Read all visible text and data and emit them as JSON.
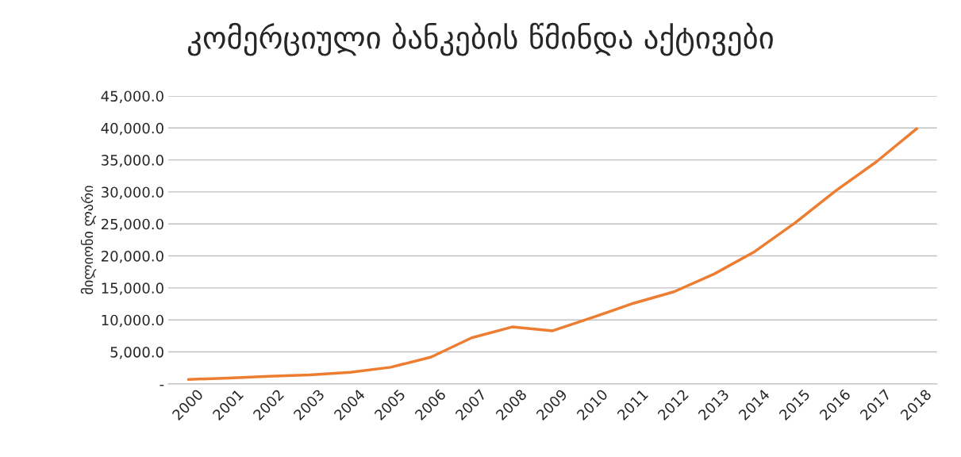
{
  "chart_data": {
    "type": "line",
    "title": "კომერციული ბანკების წმინდა აქტივები",
    "ylabel": "მილიონი ლარი",
    "categories": [
      "2000",
      "2001",
      "2002",
      "2003",
      "2004",
      "2005",
      "2006",
      "2007",
      "2008",
      "2009",
      "2010",
      "2011",
      "2012",
      "2013",
      "2014",
      "2015",
      "2016",
      "2017",
      "2018"
    ],
    "series": [
      {
        "color": "#ed7d31",
        "values": [
          700,
          900,
          1200,
          1400,
          1800,
          2600,
          4200,
          7200,
          8900,
          8300,
          10400,
          12600,
          14400,
          17200,
          20700,
          25200,
          30200,
          34700,
          39900
        ]
      }
    ],
    "ylim": [
      0,
      45000
    ],
    "yticks": [
      {
        "value": 0,
        "label": "-"
      },
      {
        "value": 5000,
        "label": "5,000.0"
      },
      {
        "value": 10000,
        "label": "10,000.0"
      },
      {
        "value": 15000,
        "label": "15,000.0"
      },
      {
        "value": 20000,
        "label": "20,000.0"
      },
      {
        "value": 25000,
        "label": "25,000.0"
      },
      {
        "value": 30000,
        "label": "30,000.0"
      },
      {
        "value": 35000,
        "label": "35,000.0"
      },
      {
        "value": 40000,
        "label": "40,000.0"
      },
      {
        "value": 45000,
        "label": "45,000.0"
      }
    ],
    "grid": "y",
    "legend": false,
    "marker": "none",
    "line_style": "solid"
  }
}
